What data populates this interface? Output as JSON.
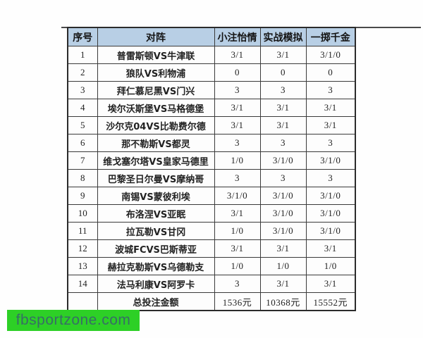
{
  "table": {
    "headers": {
      "num": "序号",
      "match": "对阵",
      "col1": "小注怡情",
      "col2": "实战模拟",
      "col3": "一掷千金"
    },
    "rows": [
      {
        "num": "1",
        "match": "普雷斯顿VS牛津联",
        "c1": "3/1",
        "c2": "3/1",
        "c3": "3/1/0"
      },
      {
        "num": "2",
        "match": "狼队VS利物浦",
        "c1": "0",
        "c2": "0",
        "c3": "0"
      },
      {
        "num": "3",
        "match": "拜仁慕尼黑VS门兴",
        "c1": "3",
        "c2": "3",
        "c3": "3"
      },
      {
        "num": "4",
        "match": "埃尔沃斯堡VS马格德堡",
        "c1": "3/1",
        "c2": "3/1",
        "c3": "3/1"
      },
      {
        "num": "5",
        "match": "沙尔克04VS比勒费尔德",
        "c1": "3/1",
        "c2": "3/1",
        "c3": "3/1"
      },
      {
        "num": "6",
        "match": "那不勒斯VS都灵",
        "c1": "3",
        "c2": "3",
        "c3": "3"
      },
      {
        "num": "7",
        "match": "维戈塞尔塔VS皇家马德里",
        "c1": "1/0",
        "c2": "3/1/0",
        "c3": "3/1/0"
      },
      {
        "num": "8",
        "match": "巴黎圣日尔曼VS摩纳哥",
        "c1": "3",
        "c2": "3",
        "c3": "3"
      },
      {
        "num": "9",
        "match": "南锡VS蒙彼利埃",
        "c1": "3/1/0",
        "c2": "3/1/0",
        "c3": "3/1/0"
      },
      {
        "num": "10",
        "match": "布洛涅VS亚眠",
        "c1": "3/1",
        "c2": "3/1/0",
        "c3": "3/1/0"
      },
      {
        "num": "11",
        "match": "拉瓦勒VS甘冈",
        "c1": "1/0",
        "c2": "3/1/0",
        "c3": "3/1/0"
      },
      {
        "num": "12",
        "match": "波城FCVS巴斯蒂亚",
        "c1": "3/1",
        "c2": "3/1",
        "c3": "3/1"
      },
      {
        "num": "13",
        "match": "赫拉克勒斯VS乌德勒支",
        "c1": "1/0",
        "c2": "1/0",
        "c3": "1/0"
      },
      {
        "num": "14",
        "match": "法马利康VS阿罗卡",
        "c1": "3",
        "c2": "3/1",
        "c3": "3/1"
      }
    ],
    "total": {
      "num": "",
      "label": "总投注金额",
      "c1": "1536元",
      "c2": "10368元",
      "c3": "15552元"
    }
  },
  "watermark": {
    "text": "fbsportzone.com",
    "bg_color": "#2dd026",
    "text_color": "#376e66"
  },
  "colors": {
    "header_bg": "#b8cfe5",
    "border": "#3a3a3a",
    "page_bg": "#fefefe"
  }
}
